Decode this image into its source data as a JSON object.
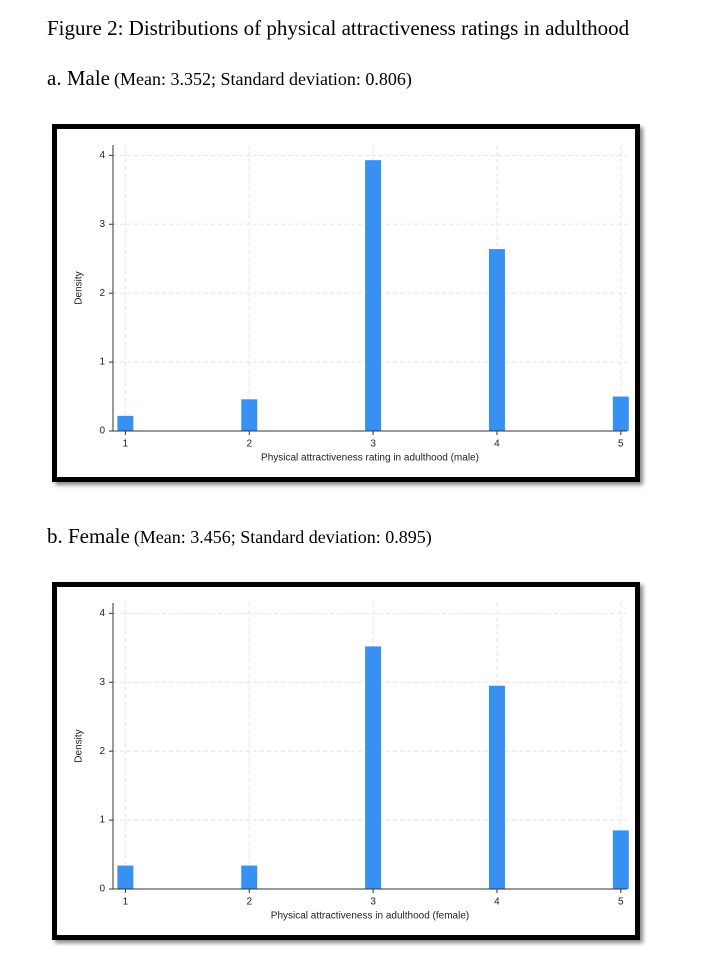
{
  "figure_title": "Figure 2: Distributions of physical attractiveness ratings in adulthood",
  "chart_data": [
    {
      "type": "bar",
      "title": "a. Male",
      "subtitle": "(Mean: 3.352; Standard deviation: 0.806)",
      "x": [
        1,
        2,
        3,
        4,
        5
      ],
      "values": [
        0.22,
        0.46,
        3.93,
        2.64,
        0.5
      ],
      "color": "#3891f2",
      "xlabel": "Physical attractiveness rating in adulthood (male)",
      "ylabel": "Density",
      "xlim": [
        0.9,
        5.05
      ],
      "xticks": [
        1,
        2,
        3,
        4,
        5
      ],
      "ylim": [
        0,
        4.15
      ],
      "yticks": [
        0,
        1,
        2,
        3,
        4
      ],
      "grid": true
    },
    {
      "type": "bar",
      "title": "b. Female",
      "subtitle": "(Mean: 3.456; Standard deviation: 0.895)",
      "x": [
        1,
        2,
        3,
        4,
        5
      ],
      "values": [
        0.34,
        0.34,
        3.52,
        2.95,
        0.85
      ],
      "color": "#3891f2",
      "xlabel": "Physical attractiveness in adulthood (female)",
      "ylabel": "Density",
      "xlim": [
        0.9,
        5.05
      ],
      "xticks": [
        1,
        2,
        3,
        4,
        5
      ],
      "ylim": [
        0,
        4.15
      ],
      "yticks": [
        0,
        1,
        2,
        3,
        4
      ],
      "grid": true
    }
  ]
}
